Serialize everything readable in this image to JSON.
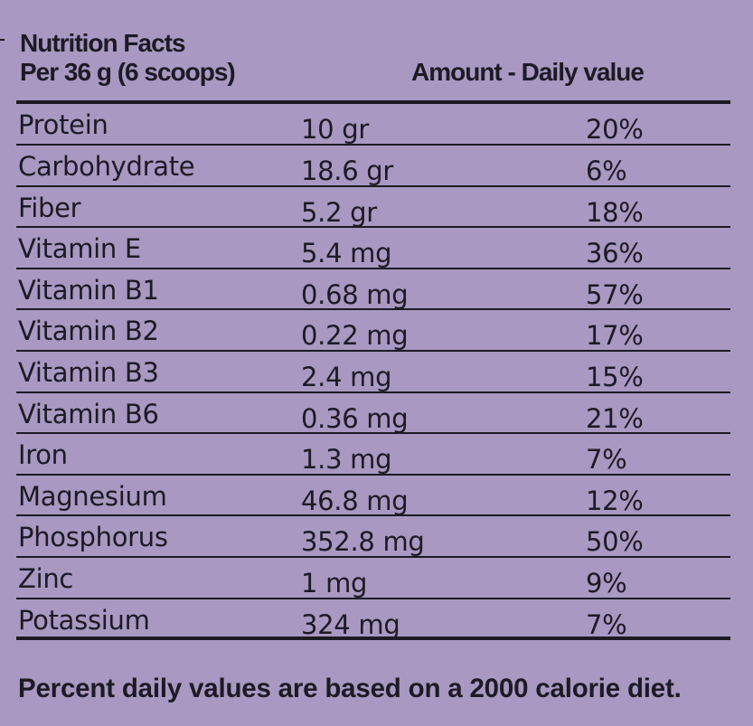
{
  "label": {
    "title": "Nutrition Facts",
    "serving": "Per 36 g (6 scoops)",
    "column_header": "Amount - Daily value",
    "footer": "Percent daily values are based on a 2000 calorie diet."
  },
  "nutrients": [
    {
      "name": "Protein",
      "amount": "10 gr",
      "daily_value": "20%"
    },
    {
      "name": "Carbohydrate",
      "amount": "18.6 gr",
      "daily_value": "6%"
    },
    {
      "name": "Fiber",
      "amount": "5.2 gr",
      "daily_value": "18%"
    },
    {
      "name": "Vitamin E",
      "amount": "5.4 mg",
      "daily_value": "36%"
    },
    {
      "name": "Vitamin B1",
      "amount": "0.68 mg",
      "daily_value": "57%"
    },
    {
      "name": "Vitamin B2",
      "amount": "0.22 mg",
      "daily_value": "17%"
    },
    {
      "name": "Vitamin B3",
      "amount": "2.4 mg",
      "daily_value": "15%"
    },
    {
      "name": "Vitamin B6",
      "amount": "0.36 mg",
      "daily_value": "21%"
    },
    {
      "name": "Iron",
      "amount": "1.3 mg",
      "daily_value": "7%"
    },
    {
      "name": "Magnesium",
      "amount": "46.8 mg",
      "daily_value": "12%"
    },
    {
      "name": "Phosphorus",
      "amount": "352.8 mg",
      "daily_value": "50%"
    },
    {
      "name": "Zinc",
      "amount": "1 mg",
      "daily_value": "9%"
    },
    {
      "name": "Potassium",
      "amount": "324 mg",
      "daily_value": "7%"
    }
  ],
  "colors": {
    "background": "#a898c2",
    "text": "#1d1a24"
  }
}
